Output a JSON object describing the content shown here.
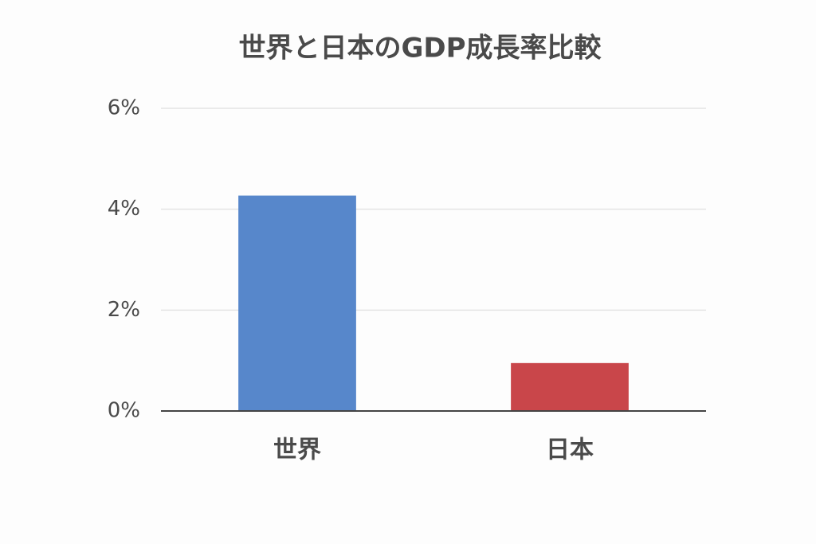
{
  "chart_data": {
    "type": "bar",
    "title": "世界と日本のGDP成長率比較",
    "categories": [
      "世界",
      "日本"
    ],
    "values": [
      4.27,
      0.95
    ],
    "colors": [
      "#5787cb",
      "#c9464a"
    ],
    "ylim": [
      0,
      6
    ],
    "yticks": [
      {
        "value": 0,
        "label": "0%"
      },
      {
        "value": 2,
        "label": "2%"
      },
      {
        "value": 4,
        "label": "4%"
      },
      {
        "value": 6,
        "label": "6%"
      }
    ],
    "grid": true
  }
}
